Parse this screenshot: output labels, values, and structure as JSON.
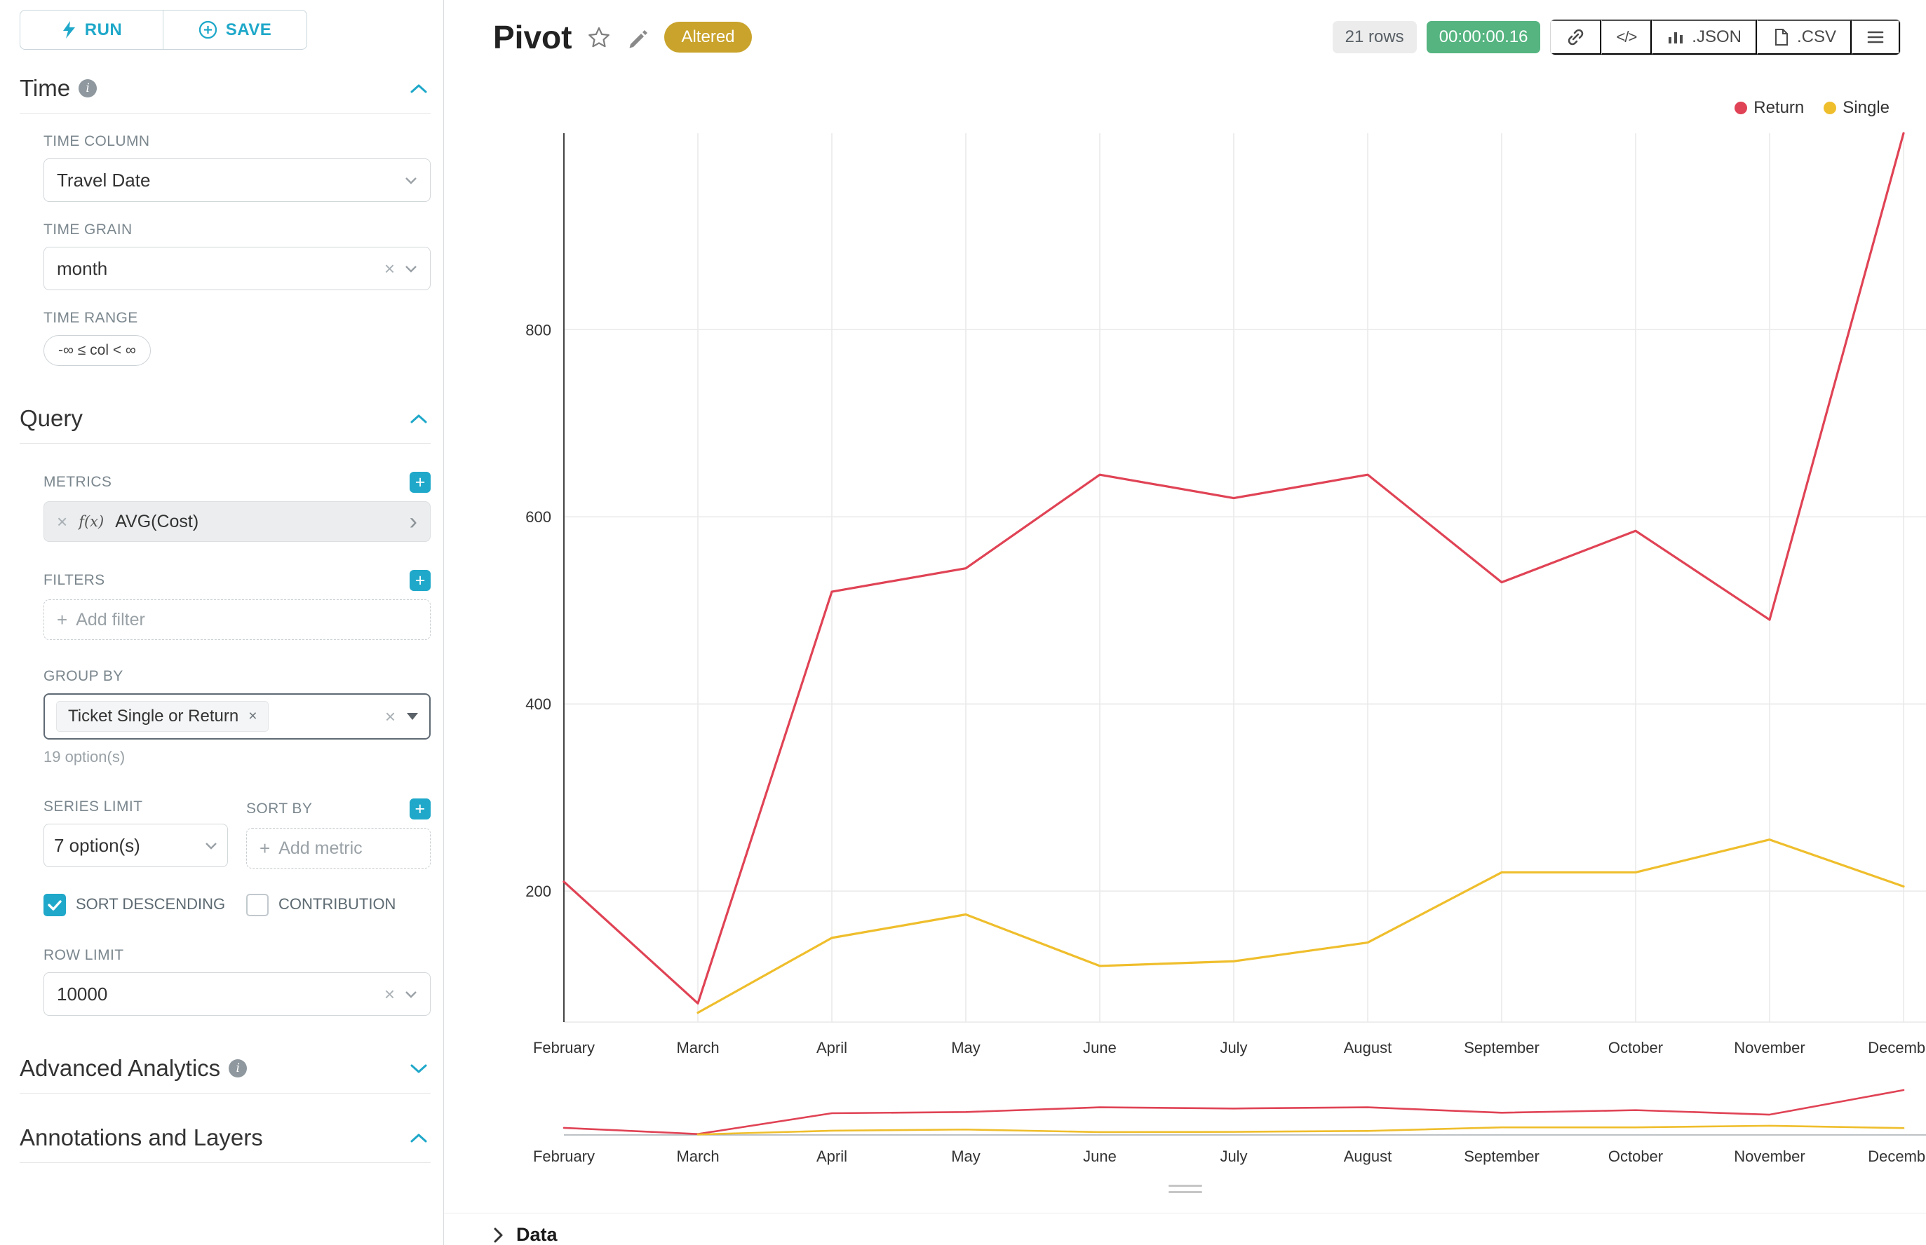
{
  "header": {
    "title": "Pivot",
    "altered_badge": "Altered",
    "rows_badge": "21 rows",
    "timer_badge": "00:00:00.16",
    "json_button": ".JSON",
    "csv_button": ".CSV"
  },
  "sidebar": {
    "run_button": "RUN",
    "save_button": "SAVE",
    "time": {
      "title": "Time",
      "time_column_label": "TIME COLUMN",
      "time_column_value": "Travel Date",
      "time_grain_label": "TIME GRAIN",
      "time_grain_value": "month",
      "time_range_label": "TIME RANGE",
      "time_range_value": "-∞ ≤ col < ∞"
    },
    "query": {
      "title": "Query",
      "metrics_label": "METRICS",
      "metric_fx": "f(x)",
      "metric_value": "AVG(Cost)",
      "filters_label": "FILTERS",
      "add_filter_placeholder": "Add filter",
      "group_by_label": "GROUP BY",
      "group_by_tag": "Ticket Single or Return",
      "group_by_hint": "19 option(s)",
      "series_limit_label": "SERIES LIMIT",
      "series_limit_value": "7 option(s)",
      "sort_by_label": "SORT BY",
      "add_metric_placeholder": "Add metric",
      "sort_descending_label": "SORT DESCENDING",
      "contribution_label": "CONTRIBUTION",
      "row_limit_label": "ROW LIMIT",
      "row_limit_value": "10000"
    },
    "advanced": {
      "title": "Advanced Analytics"
    },
    "annotations": {
      "title": "Annotations and Layers"
    }
  },
  "footer": {
    "data_label": "Data"
  },
  "icons": {
    "close": "×",
    "plus": "+",
    "code": "</>",
    "expand": "›",
    "info": "i"
  },
  "chart_data": {
    "type": "line",
    "title": "",
    "categories": [
      "February",
      "March",
      "April",
      "May",
      "June",
      "July",
      "August",
      "September",
      "October",
      "November",
      "December"
    ],
    "series": [
      {
        "name": "Return",
        "color": "#e04355",
        "values": [
          210,
          80,
          520,
          545,
          645,
          620,
          645,
          530,
          585,
          490,
          1010
        ]
      },
      {
        "name": "Single",
        "color": "#efbe2c",
        "values": [
          null,
          70,
          150,
          175,
          120,
          125,
          145,
          220,
          220,
          255,
          205
        ]
      }
    ],
    "y_ticks": [
      200,
      400,
      600,
      800
    ],
    "ylim": [
      60,
      1010
    ],
    "xlabel": "",
    "ylabel": "",
    "grid": true,
    "legend_position": "top-right",
    "has_preview_strip": true
  }
}
